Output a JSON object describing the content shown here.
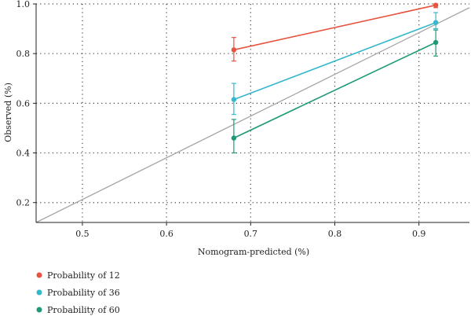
{
  "chart_data": {
    "type": "line",
    "title": "",
    "xlabel": "Nomogram-predicted (%)",
    "ylabel": "Observed (%)",
    "xlim": [
      0.445,
      0.96
    ],
    "ylim": [
      0.12,
      1.0
    ],
    "xticks": [
      0.5,
      0.6,
      0.7,
      0.8,
      0.9
    ],
    "xtick_labels": [
      "0.5",
      "0.6",
      "0.7",
      "0.8",
      "0.9"
    ],
    "yticks": [
      0.2,
      0.4,
      0.6,
      0.8,
      1.0
    ],
    "ytick_labels": [
      "0.2",
      "0.4",
      "0.6",
      "0.8",
      "1.0"
    ],
    "grid": true,
    "legend_position": "bottom-left",
    "reference_line": {
      "x": [
        0.445,
        0.96
      ],
      "y": [
        0.12,
        0.985
      ],
      "color": "#a6a6a6"
    },
    "series": [
      {
        "name": "Probability of 12",
        "color": "#e8533f",
        "points": [
          {
            "x": 0.68,
            "y": 0.815,
            "err_low": 0.77,
            "err_high": 0.865
          },
          {
            "x": 0.92,
            "y": 0.995,
            "err_low": 0.985,
            "err_high": 1.0
          }
        ]
      },
      {
        "name": "Probability of 36",
        "color": "#35b8cc",
        "points": [
          {
            "x": 0.68,
            "y": 0.615,
            "err_low": 0.555,
            "err_high": 0.68
          },
          {
            "x": 0.92,
            "y": 0.925,
            "err_low": 0.9,
            "err_high": 0.965
          }
        ]
      },
      {
        "name": "Probability of 60",
        "color": "#1e9a78",
        "points": [
          {
            "x": 0.68,
            "y": 0.46,
            "err_low": 0.4,
            "err_high": 0.535
          },
          {
            "x": 0.92,
            "y": 0.845,
            "err_low": 0.79,
            "err_high": 0.895
          }
        ]
      }
    ]
  }
}
